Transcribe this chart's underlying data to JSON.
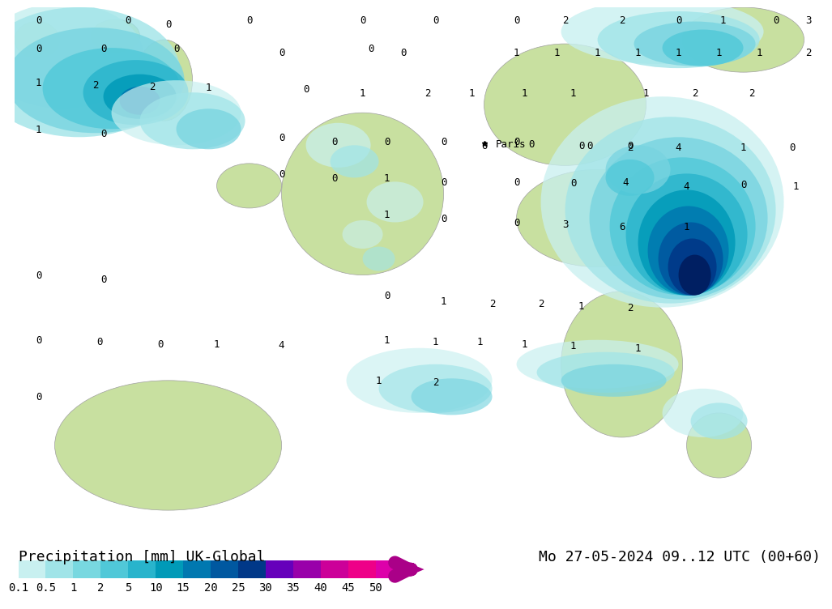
{
  "title_left": "Precipitation [mm] UK-Global",
  "title_right": "Mo 27-05-2024 09..12 UTC (00+60)",
  "colorbar_labels": [
    "0.1",
    "0.5",
    "1",
    "2",
    "5",
    "10",
    "15",
    "20",
    "25",
    "30",
    "35",
    "40",
    "45",
    "50"
  ],
  "colorbar_colors": [
    "#c8f0f0",
    "#a0e4e8",
    "#78d8e0",
    "#50c8d8",
    "#28b4cc",
    "#009ab8",
    "#0078b0",
    "#0058a0",
    "#003888",
    "#6600bb",
    "#9900aa",
    "#cc0099",
    "#ee0088",
    "#dd00aa"
  ],
  "arrow_color": "#aa0088",
  "sea_color": "#ddd8d0",
  "land_color": "#c8e0a0",
  "border_color": "#a0a0a0",
  "bg_color": "#ffffff",
  "legend_bg": "#ffffff",
  "text_color": "#000000",
  "font_size_title": 13,
  "font_size_labels": 10,
  "font_size_nums": 9,
  "precip_colors": {
    "lightest": "#c8f0f0",
    "light": "#a0e0e8",
    "medium_light": "#68cce0",
    "medium": "#3aaed4",
    "medium_dark": "#1890c8",
    "dark": "#0070b8",
    "darker": "#0050a0",
    "darkest": "#003580",
    "very_dark": "#001e60"
  }
}
